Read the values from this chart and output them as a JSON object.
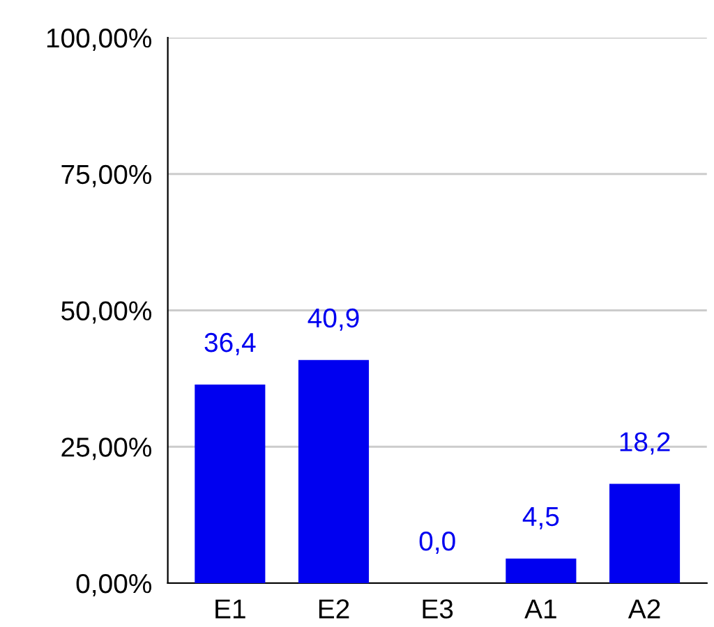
{
  "chart_data": {
    "type": "bar",
    "categories": [
      "E1",
      "E2",
      "E3",
      "A1",
      "A2"
    ],
    "values": [
      36.4,
      40.9,
      0.0,
      4.5,
      18.2
    ],
    "value_labels": [
      "36,4",
      "40,9",
      "0,0",
      "4,5",
      "18,2"
    ],
    "color": "#0000f0",
    "ylim": [
      0,
      100
    ],
    "yticks": [
      {
        "value": 0,
        "label": "0,00%"
      },
      {
        "value": 25,
        "label": "25,00%"
      },
      {
        "value": 50,
        "label": "50,00%"
      },
      {
        "value": 75,
        "label": "75,00%"
      },
      {
        "value": 100,
        "label": "100,00%"
      }
    ],
    "grid": "y"
  }
}
